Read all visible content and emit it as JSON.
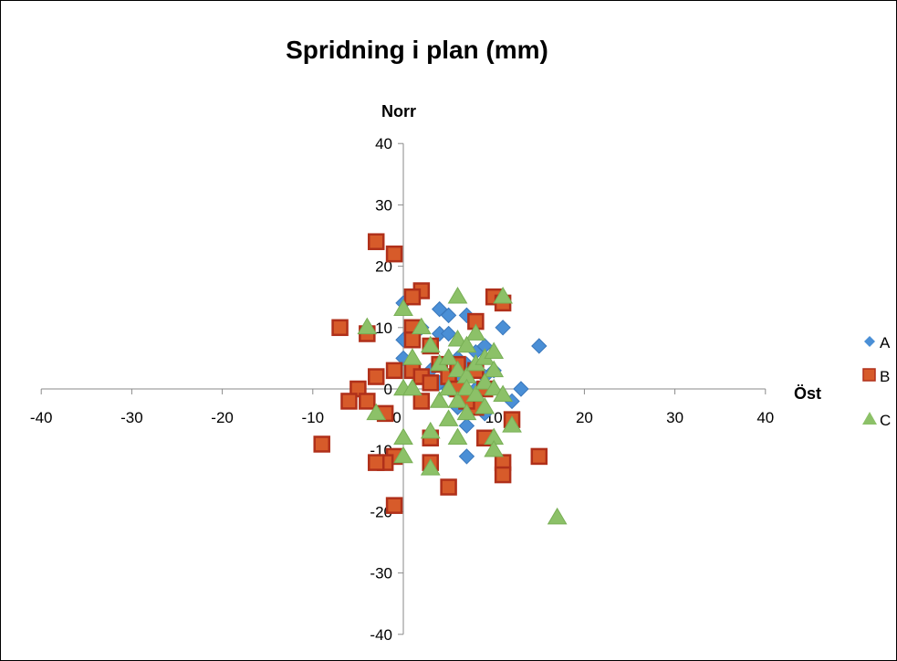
{
  "chart_data": {
    "type": "scatter",
    "title": "Spridning i plan (mm)",
    "xlabel": "Öst",
    "ylabel": "Norr",
    "xlim": [
      -40,
      40
    ],
    "ylim": [
      -40,
      40
    ],
    "x_ticks": [
      "-40",
      "-30",
      "-20",
      "-10",
      "0",
      "10",
      "20",
      "30",
      "40"
    ],
    "y_ticks": [
      "40",
      "30",
      "20",
      "10",
      "0",
      "-10",
      "-20",
      "-30",
      "-40"
    ],
    "legend_position": "right",
    "series": [
      {
        "name": "A",
        "marker": "diamond",
        "color": "#4A8FD6",
        "points": [
          [
            0,
            14
          ],
          [
            0,
            8
          ],
          [
            0,
            5
          ],
          [
            2,
            10
          ],
          [
            3,
            7
          ],
          [
            4,
            13
          ],
          [
            4,
            9
          ],
          [
            5,
            12
          ],
          [
            5,
            9
          ],
          [
            6,
            5
          ],
          [
            6,
            2
          ],
          [
            7,
            12
          ],
          [
            7,
            4
          ],
          [
            8,
            3
          ],
          [
            8,
            6
          ],
          [
            9,
            7
          ],
          [
            9,
            2
          ],
          [
            10,
            3
          ],
          [
            11,
            10
          ],
          [
            12,
            -2
          ],
          [
            13,
            0
          ],
          [
            15,
            7
          ],
          [
            7,
            -6
          ],
          [
            7,
            -11
          ],
          [
            5,
            0
          ],
          [
            6,
            -3
          ],
          [
            4,
            1
          ],
          [
            8,
            0
          ],
          [
            9,
            -4
          ],
          [
            3,
            3
          ]
        ]
      },
      {
        "name": "B",
        "marker": "square",
        "color": "#D75B2A",
        "points": [
          [
            -3,
            24
          ],
          [
            -1,
            22
          ],
          [
            2,
            16
          ],
          [
            1,
            15
          ],
          [
            10,
            15
          ],
          [
            11,
            14
          ],
          [
            -7,
            10
          ],
          [
            -4,
            9
          ],
          [
            1,
            10
          ],
          [
            1,
            8
          ],
          [
            8,
            11
          ],
          [
            3,
            7
          ],
          [
            -3,
            2
          ],
          [
            -1,
            3
          ],
          [
            1,
            3
          ],
          [
            2,
            2
          ],
          [
            3,
            1
          ],
          [
            4,
            4
          ],
          [
            5,
            2
          ],
          [
            6,
            4
          ],
          [
            8,
            3
          ],
          [
            9,
            0
          ],
          [
            -5,
            0
          ],
          [
            -4,
            -2
          ],
          [
            -6,
            -2
          ],
          [
            -2,
            -4
          ],
          [
            2,
            -2
          ],
          [
            8,
            -3
          ],
          [
            12,
            -5
          ],
          [
            -9,
            -9
          ],
          [
            -1,
            -11
          ],
          [
            -2,
            -12
          ],
          [
            -3,
            -12
          ],
          [
            3,
            -8
          ],
          [
            3,
            -12
          ],
          [
            9,
            -8
          ],
          [
            11,
            -12
          ],
          [
            11,
            -14
          ],
          [
            15,
            -11
          ],
          [
            5,
            -16
          ],
          [
            -1,
            -19
          ],
          [
            6,
            0
          ],
          [
            7,
            -2
          ]
        ]
      },
      {
        "name": "C",
        "marker": "triangle",
        "color": "#8CC168",
        "points": [
          [
            0,
            13
          ],
          [
            2,
            10
          ],
          [
            -4,
            10
          ],
          [
            6,
            15
          ],
          [
            11,
            15
          ],
          [
            6,
            8
          ],
          [
            8,
            9
          ],
          [
            3,
            7
          ],
          [
            7,
            7
          ],
          [
            1,
            5
          ],
          [
            4,
            4
          ],
          [
            5,
            5
          ],
          [
            6,
            3
          ],
          [
            7,
            2
          ],
          [
            8,
            4
          ],
          [
            9,
            5
          ],
          [
            10,
            6
          ],
          [
            10,
            3
          ],
          [
            0,
            0
          ],
          [
            1,
            0
          ],
          [
            4,
            -2
          ],
          [
            5,
            0
          ],
          [
            6,
            -2
          ],
          [
            7,
            0
          ],
          [
            8,
            -1
          ],
          [
            9,
            1
          ],
          [
            10,
            0
          ],
          [
            11,
            -1
          ],
          [
            -3,
            -4
          ],
          [
            5,
            -5
          ],
          [
            6,
            -8
          ],
          [
            10,
            -8
          ],
          [
            12,
            -6
          ],
          [
            10,
            -10
          ],
          [
            0,
            -8
          ],
          [
            0,
            -11
          ],
          [
            3,
            -7
          ],
          [
            3,
            -13
          ],
          [
            17,
            -21
          ],
          [
            7,
            -4
          ],
          [
            9,
            -3
          ]
        ]
      }
    ]
  }
}
